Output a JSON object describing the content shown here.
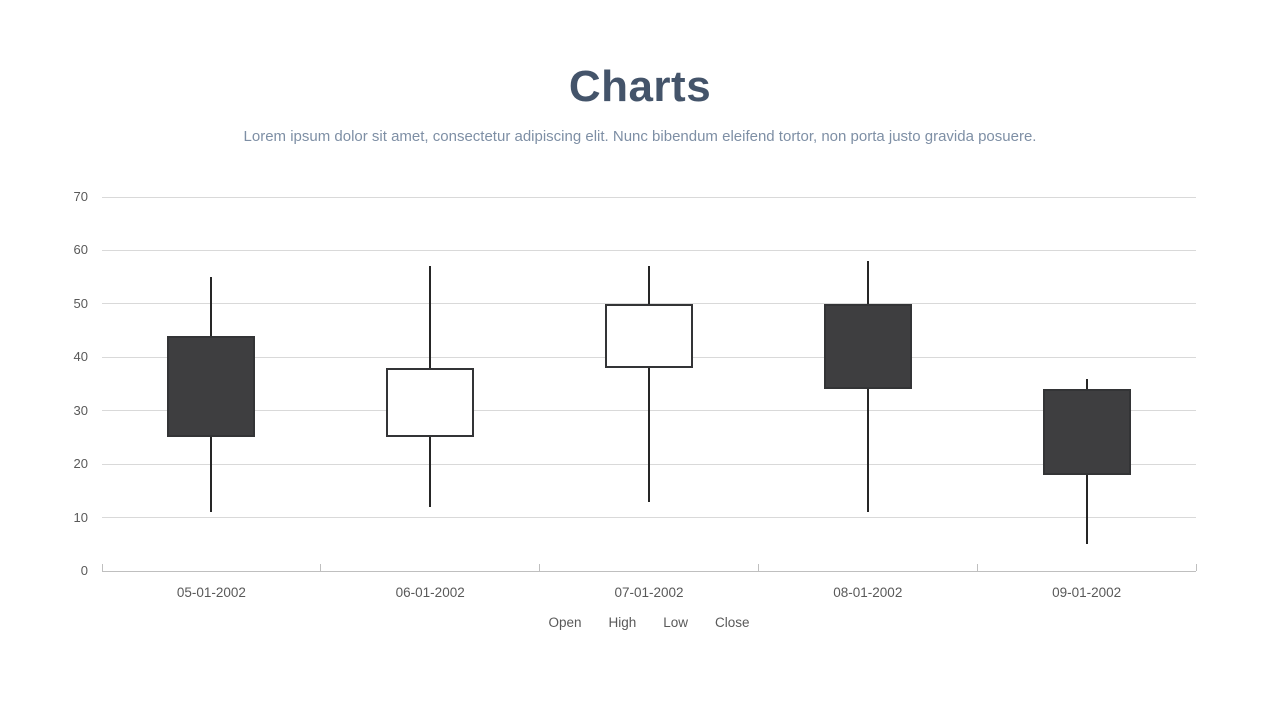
{
  "slide": {
    "title": "Charts",
    "subtitle": "Lorem ipsum dolor sit amet, consectetur adipiscing elit. Nunc bibendum eleifend tortor, non porta justo gravida posuere."
  },
  "chart_data": {
    "type": "candlestick",
    "title": "Charts",
    "categories": [
      "05-01-2002",
      "06-01-2002",
      "07-01-2002",
      "08-01-2002",
      "09-01-2002"
    ],
    "series": [
      {
        "name": "Open",
        "values": [
          44,
          25,
          38,
          50,
          34
        ]
      },
      {
        "name": "High",
        "values": [
          55,
          57,
          57,
          58,
          36
        ]
      },
      {
        "name": "Low",
        "values": [
          11,
          12,
          13,
          11,
          5
        ]
      },
      {
        "name": "Close",
        "values": [
          25,
          38,
          50,
          34,
          18
        ]
      }
    ],
    "candles": [
      {
        "date": "05-01-2002",
        "open": 44,
        "high": 55,
        "low": 11,
        "close": 25,
        "direction": "falling"
      },
      {
        "date": "06-01-2002",
        "open": 25,
        "high": 57,
        "low": 12,
        "close": 38,
        "direction": "rising"
      },
      {
        "date": "07-01-2002",
        "open": 38,
        "high": 57,
        "low": 13,
        "close": 50,
        "direction": "rising"
      },
      {
        "date": "08-01-2002",
        "open": 50,
        "high": 58,
        "low": 11,
        "close": 34,
        "direction": "falling"
      },
      {
        "date": "09-01-2002",
        "open": 34,
        "high": 36,
        "low": 5,
        "close": 18,
        "direction": "falling"
      }
    ],
    "ylim": [
      0,
      70
    ],
    "y_ticks": [
      0,
      10,
      20,
      30,
      40,
      50,
      60,
      70
    ],
    "grid": true,
    "legend": [
      "Open",
      "High",
      "Low",
      "Close"
    ],
    "legend_position": "bottom",
    "colors": {
      "title": "#44546A",
      "subtitle": "#7E8FA5",
      "falling_fill": "#3E3E40",
      "rising_fill": "#FFFFFF",
      "body_border": "#333436",
      "wick": "#262626",
      "gridline": "#D9D9D9",
      "axis_line": "#BFBFBF",
      "axis_label": "#595959"
    }
  }
}
